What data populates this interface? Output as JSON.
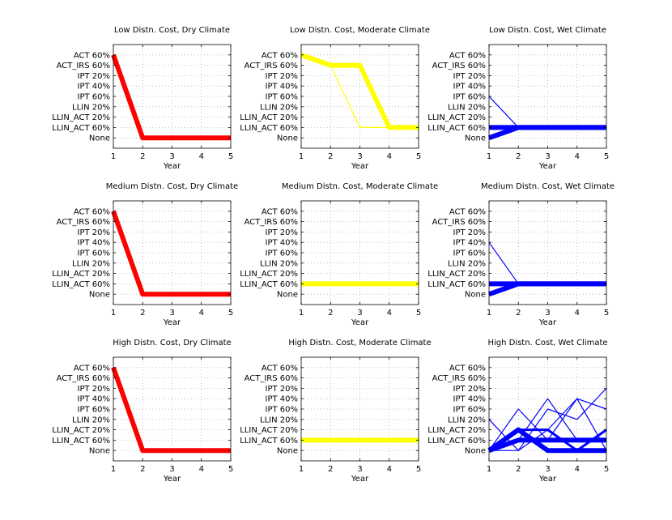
{
  "colors": {
    "red": "#ff0000",
    "yellow": "#ffff00",
    "blue": "#0000ff"
  },
  "chart_data": [
    {
      "type": "line",
      "title": "Low Distn. Cost, Dry Climate",
      "xlabel": "Year",
      "x": [
        1,
        2,
        3,
        4,
        5
      ],
      "xlim": [
        1,
        5
      ],
      "categories": [
        "None",
        "LLIN_ACT 60%",
        "LLIN_ACT 20%",
        "LLIN 20%",
        "IPT 60%",
        "IPT 40%",
        "IPT 20%",
        "ACT_IRS 60%",
        "ACT 60%"
      ],
      "grid": true,
      "color": "red",
      "series": [
        {
          "values": [
            "ACT 60%",
            "None",
            "None",
            "None",
            "None"
          ],
          "weight": "thick"
        }
      ]
    },
    {
      "type": "line",
      "title": "Low Distn. Cost, Moderate Climate",
      "xlabel": "Year",
      "x": [
        1,
        2,
        3,
        4,
        5
      ],
      "xlim": [
        1,
        5
      ],
      "categories": [
        "None",
        "LLIN_ACT 60%",
        "LLIN_ACT 20%",
        "LLIN 20%",
        "IPT 60%",
        "IPT 40%",
        "IPT 20%",
        "ACT_IRS 60%",
        "ACT 60%"
      ],
      "grid": true,
      "color": "yellow",
      "series": [
        {
          "values": [
            "ACT 60%",
            "ACT_IRS 60%",
            "ACT_IRS 60%",
            "LLIN_ACT 60%",
            "LLIN_ACT 60%"
          ],
          "weight": "thick"
        },
        {
          "values": [
            "ACT 60%",
            "ACT_IRS 60%",
            "LLIN_ACT 60%",
            "LLIN_ACT 60%",
            "LLIN_ACT 60%"
          ],
          "weight": "thin"
        }
      ]
    },
    {
      "type": "line",
      "title": "Low Distn. Cost, Wet Climate",
      "xlabel": "Year",
      "x": [
        1,
        2,
        3,
        4,
        5
      ],
      "xlim": [
        1,
        5
      ],
      "categories": [
        "None",
        "LLIN_ACT 60%",
        "LLIN_ACT 20%",
        "LLIN 20%",
        "IPT 60%",
        "IPT 40%",
        "IPT 20%",
        "ACT_IRS 60%",
        "ACT 60%"
      ],
      "grid": true,
      "color": "blue",
      "series": [
        {
          "values": [
            "None",
            "LLIN_ACT 60%",
            "LLIN_ACT 60%",
            "LLIN_ACT 60%",
            "LLIN_ACT 60%"
          ],
          "weight": "thick"
        },
        {
          "values": [
            "LLIN_ACT 60%",
            "LLIN_ACT 60%",
            "LLIN_ACT 60%",
            "LLIN_ACT 60%",
            "LLIN_ACT 60%"
          ],
          "weight": "thick"
        },
        {
          "values": [
            "IPT 60%",
            "LLIN_ACT 60%",
            "LLIN_ACT 60%",
            "LLIN_ACT 60%",
            "LLIN_ACT 60%"
          ],
          "weight": "thin"
        }
      ]
    },
    {
      "type": "line",
      "title": "Medium Distn. Cost, Dry Climate",
      "xlabel": "Year",
      "x": [
        1,
        2,
        3,
        4,
        5
      ],
      "xlim": [
        1,
        5
      ],
      "categories": [
        "None",
        "LLIN_ACT 60%",
        "LLIN_ACT 20%",
        "LLIN 20%",
        "IPT 60%",
        "IPT 40%",
        "IPT 20%",
        "ACT_IRS 60%",
        "ACT 60%"
      ],
      "grid": true,
      "color": "red",
      "series": [
        {
          "values": [
            "ACT 60%",
            "None",
            "None",
            "None",
            "None"
          ],
          "weight": "thick"
        }
      ]
    },
    {
      "type": "line",
      "title": "Medium Distn. Cost, Moderate Climate",
      "xlabel": "Year",
      "x": [
        1,
        2,
        3,
        4,
        5
      ],
      "xlim": [
        1,
        5
      ],
      "categories": [
        "None",
        "LLIN_ACT 60%",
        "LLIN_ACT 20%",
        "LLIN 20%",
        "IPT 60%",
        "IPT 40%",
        "IPT 20%",
        "ACT_IRS 60%",
        "ACT 60%"
      ],
      "grid": true,
      "color": "yellow",
      "series": [
        {
          "values": [
            "LLIN_ACT 60%",
            "LLIN_ACT 60%",
            "LLIN_ACT 60%",
            "LLIN_ACT 60%",
            "LLIN_ACT 60%"
          ],
          "weight": "thick"
        }
      ]
    },
    {
      "type": "line",
      "title": "Medium Distn. Cost, Wet Climate",
      "xlabel": "Year",
      "x": [
        1,
        2,
        3,
        4,
        5
      ],
      "xlim": [
        1,
        5
      ],
      "categories": [
        "None",
        "LLIN_ACT 60%",
        "LLIN_ACT 20%",
        "LLIN 20%",
        "IPT 60%",
        "IPT 40%",
        "IPT 20%",
        "ACT_IRS 60%",
        "ACT 60%"
      ],
      "grid": true,
      "color": "blue",
      "series": [
        {
          "values": [
            "None",
            "LLIN_ACT 60%",
            "LLIN_ACT 60%",
            "LLIN_ACT 60%",
            "LLIN_ACT 60%"
          ],
          "weight": "thick"
        },
        {
          "values": [
            "LLIN_ACT 60%",
            "LLIN_ACT 60%",
            "LLIN_ACT 60%",
            "LLIN_ACT 60%",
            "LLIN_ACT 60%"
          ],
          "weight": "thick"
        },
        {
          "values": [
            "IPT 40%",
            "LLIN_ACT 60%",
            "LLIN_ACT 60%",
            "LLIN_ACT 60%",
            "LLIN_ACT 60%"
          ],
          "weight": "thin"
        }
      ]
    },
    {
      "type": "line",
      "title": "High Distn. Cost, Dry Climate",
      "xlabel": "Year",
      "x": [
        1,
        2,
        3,
        4,
        5
      ],
      "xlim": [
        1,
        5
      ],
      "categories": [
        "None",
        "LLIN_ACT 60%",
        "LLIN_ACT 20%",
        "LLIN 20%",
        "IPT 60%",
        "IPT 40%",
        "IPT 20%",
        "ACT_IRS 60%",
        "ACT 60%"
      ],
      "grid": true,
      "color": "red",
      "series": [
        {
          "values": [
            "ACT 60%",
            "None",
            "None",
            "None",
            "None"
          ],
          "weight": "thick"
        }
      ]
    },
    {
      "type": "line",
      "title": "High Distn. Cost, Moderate Climate",
      "xlabel": "Year",
      "x": [
        1,
        2,
        3,
        4,
        5
      ],
      "xlim": [
        1,
        5
      ],
      "categories": [
        "None",
        "LLIN_ACT 60%",
        "LLIN_ACT 20%",
        "LLIN 20%",
        "IPT 60%",
        "IPT 40%",
        "IPT 20%",
        "ACT_IRS 60%",
        "ACT 60%"
      ],
      "grid": true,
      "color": "yellow",
      "series": [
        {
          "values": [
            "LLIN_ACT 60%",
            "LLIN_ACT 60%",
            "LLIN_ACT 60%",
            "LLIN_ACT 60%",
            "LLIN_ACT 60%"
          ],
          "weight": "thick"
        }
      ]
    },
    {
      "type": "line",
      "title": "High Distn. Cost, Wet Climate",
      "xlabel": "Year",
      "x": [
        1,
        2,
        3,
        4,
        5
      ],
      "xlim": [
        1,
        5
      ],
      "categories": [
        "None",
        "LLIN_ACT 60%",
        "LLIN_ACT 20%",
        "LLIN 20%",
        "IPT 60%",
        "IPT 40%",
        "IPT 20%",
        "ACT_IRS 60%",
        "ACT 60%"
      ],
      "grid": true,
      "color": "blue",
      "series": [
        {
          "values": [
            "None",
            "LLIN_ACT 60%",
            "LLIN_ACT 60%",
            "LLIN_ACT 60%",
            "LLIN_ACT 60%"
          ],
          "weight": "thick"
        },
        {
          "values": [
            "None",
            "LLIN_ACT 20%",
            "None",
            "None",
            "None"
          ],
          "weight": "thick"
        },
        {
          "values": [
            "None",
            "LLIN_ACT 20%",
            "LLIN_ACT 20%",
            "None",
            "LLIN_ACT 20%"
          ],
          "weight": "medium"
        },
        {
          "values": [
            "LLIN 20%",
            "None",
            "IPT 60%",
            "LLIN 20%",
            "IPT 20%"
          ],
          "weight": "thin"
        },
        {
          "values": [
            "None",
            "IPT 60%",
            "LLIN_ACT 60%",
            "IPT 40%",
            "IPT 60%"
          ],
          "weight": "thin"
        },
        {
          "values": [
            "None",
            "LLIN_ACT 60%",
            "IPT 40%",
            "LLIN_ACT 60%",
            "LLIN_ACT 60%"
          ],
          "weight": "thin"
        },
        {
          "values": [
            "None",
            "None",
            "LLIN_ACT 20%",
            "IPT 40%",
            "None"
          ],
          "weight": "thin"
        }
      ]
    }
  ]
}
